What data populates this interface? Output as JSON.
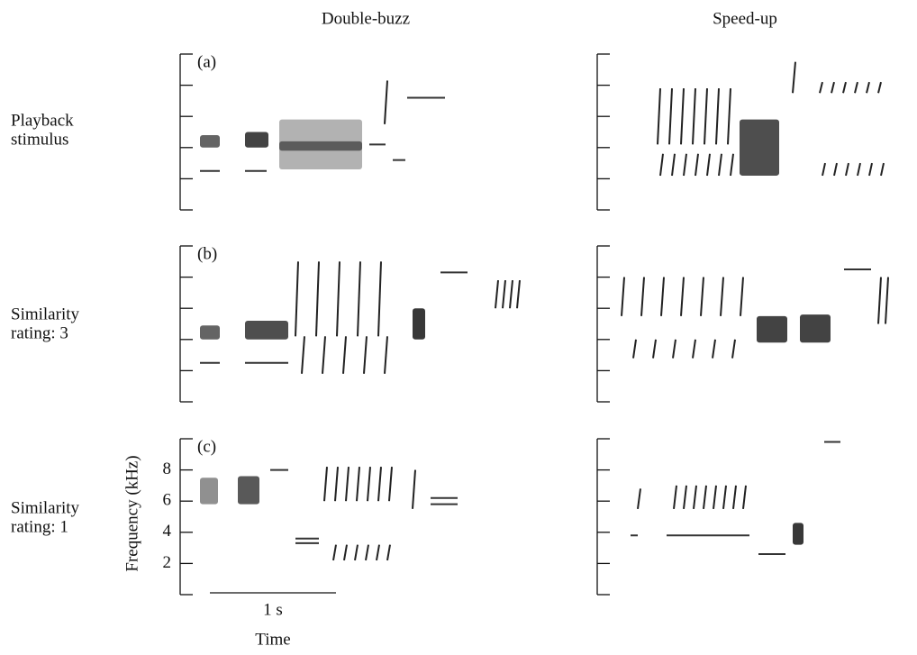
{
  "columns": [
    "Double-buzz",
    "Speed-up"
  ],
  "rows": [
    {
      "label_lines": [
        "Playback",
        "stimulus"
      ],
      "panel": "(a)"
    },
    {
      "label_lines": [
        "Similarity",
        "rating: 3"
      ],
      "panel": "(b)"
    },
    {
      "label_lines": [
        "Similarity",
        "rating: 1"
      ],
      "panel": "(c)"
    }
  ],
  "axis": {
    "y_label": "Frequency (kHz)",
    "yticks": [
      2,
      4,
      6,
      8
    ],
    "scale_bar": "1 s",
    "x_label": "Time"
  }
}
